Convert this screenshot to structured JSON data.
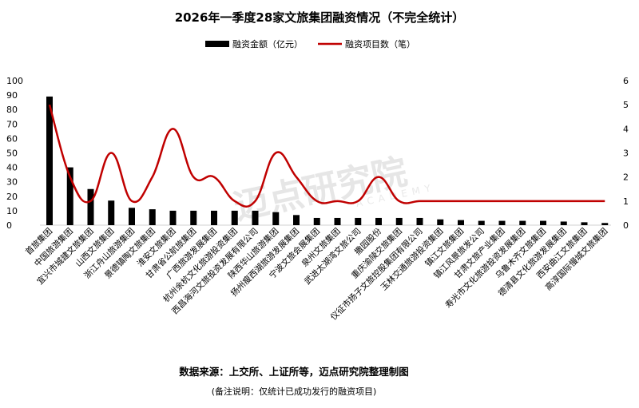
{
  "chart_data": {
    "type": "bar",
    "title": "2026年一季度28家文旅集团融资情况（不完全统计）",
    "series": [
      {
        "name": "融资金额（亿元）",
        "kind": "bar",
        "axis": "left",
        "color": "#000000",
        "values": [
          89,
          40,
          25,
          17,
          12,
          11,
          10,
          10,
          10,
          10,
          10,
          9,
          7,
          5,
          5,
          5,
          5,
          5,
          5,
          4,
          3.5,
          3,
          3,
          3,
          3,
          2.5,
          2,
          1.5
        ]
      },
      {
        "name": "融资项目数（笔）",
        "kind": "line",
        "axis": "right",
        "color": "#c00000",
        "values": [
          5,
          2,
          1,
          3,
          1,
          2,
          4,
          2,
          2,
          1,
          1,
          3,
          2,
          1,
          1,
          1,
          2,
          1,
          1,
          1,
          1,
          1,
          1,
          1,
          1,
          1,
          1,
          1
        ]
      }
    ],
    "categories": [
      "首旅集团",
      "中国旅游集团",
      "宜兴市城建文旅集团",
      "山西文旅集团",
      "浙江舟山旅游集团",
      "景德镇陶文旅集团",
      "淮安文旅集团",
      "甘肃省公航旅集团",
      "广西旅游发展集团",
      "杭州余杭文化旅游投资集团",
      "西昌海河文旅投资发展有限公司",
      "陕西华山旅游集团",
      "扬州瘦西湖旅游发展集团",
      "宁波文旅会展集团",
      "泉州文旅集团",
      "武进太湖湾文旅公司",
      "撒园股份",
      "重庆渝陵交旅集团",
      "仪征市扬子文旅控股集团有限公司",
      "玉林交通旅游投资集团",
      "镇江文旅集团",
      "镇江风景旅发公司",
      "甘肃文旅产业集团",
      "寿光市文化旅游投资发展集团",
      "乌鲁木齐文旅集团",
      "德清县文化旅游发展集团",
      "西安曲江文旅集团",
      "高淳国际慢城文旅集团"
    ],
    "y_left": {
      "min": 0,
      "max": 100,
      "ticks": [
        0,
        10,
        20,
        30,
        40,
        50,
        60,
        70,
        80,
        90,
        100
      ]
    },
    "y_right": {
      "min": 0,
      "max": 6,
      "ticks": [
        0,
        1,
        2,
        3,
        4,
        5,
        6
      ]
    },
    "legend_position": "top",
    "grid": false
  },
  "footer": {
    "source": "数据来源：上交所、上证所等，迈点研究院整理制图",
    "note": "(备注说明：仅统计已成功发行的融资项目)"
  },
  "watermark": {
    "text": "迈点研究院",
    "sub": "ACADEMY"
  }
}
